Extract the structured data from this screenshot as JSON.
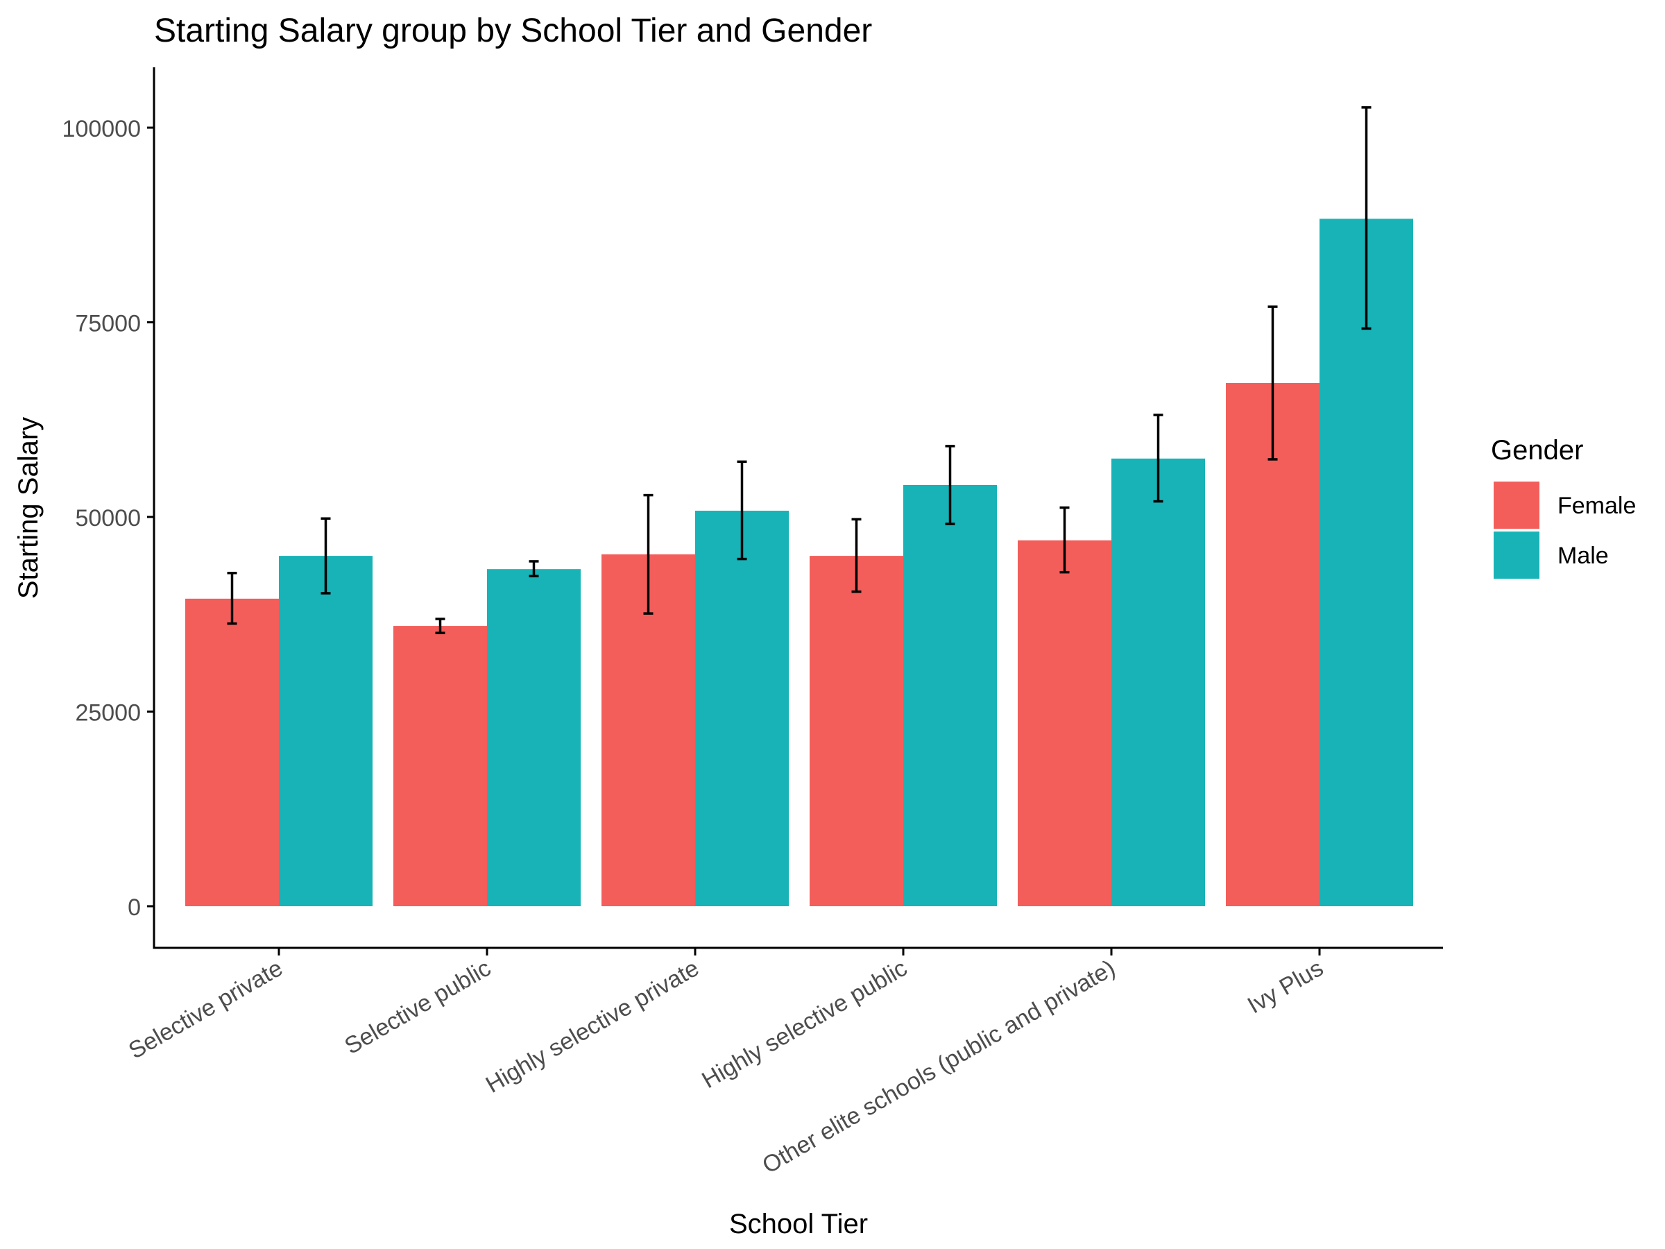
{
  "chart_data": {
    "type": "bar",
    "title": "Starting Salary group by School Tier and Gender",
    "xlabel": "School Tier",
    "ylabel": "Starting Salary",
    "ylim": [
      -5000,
      107500
    ],
    "yticks": [
      0,
      25000,
      50000,
      75000,
      100000
    ],
    "grid": false,
    "legend_position": "right",
    "legend_title": "Gender",
    "categories": [
      "Selective private",
      "Selective public",
      "Highly selective private",
      "Highly selective public",
      "Other elite schools (public and private)",
      "Ivy Plus"
    ],
    "series": [
      {
        "name": "Female",
        "color": "#F35E5A",
        "values": [
          39500,
          36000,
          45200,
          45000,
          47000,
          67200
        ],
        "error_low": [
          36300,
          35100,
          37600,
          40400,
          42900,
          57400
        ],
        "error_high": [
          42800,
          36900,
          52800,
          49700,
          51200,
          77000
        ]
      },
      {
        "name": "Male",
        "color": "#17B3B7",
        "values": [
          45000,
          43300,
          50800,
          54100,
          57500,
          88300
        ],
        "error_low": [
          40200,
          42400,
          44600,
          49100,
          52000,
          74200
        ],
        "error_high": [
          49800,
          44300,
          57100,
          59100,
          63100,
          102600
        ]
      }
    ]
  }
}
